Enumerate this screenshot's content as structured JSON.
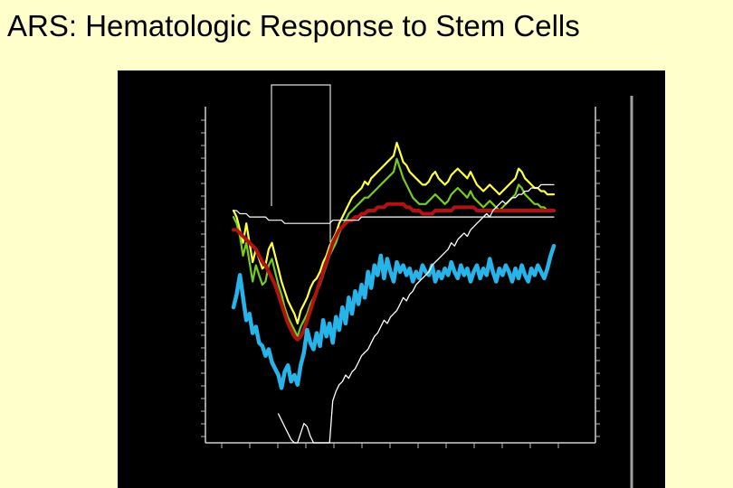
{
  "slide": {
    "title": "ARS: Hematologic Response to Stem Cells"
  },
  "chart_data": {
    "type": "line",
    "title": "ARS: Hematologic Response to Stem Cells",
    "grid": false,
    "x": [
      0,
      1,
      2,
      3,
      4,
      5,
      6,
      7,
      8,
      9,
      10,
      11,
      12,
      13,
      14,
      15,
      16,
      17,
      18,
      19,
      20,
      21,
      22,
      23,
      24,
      25,
      26,
      27,
      28,
      29,
      30,
      31,
      32,
      33,
      34,
      35,
      36,
      37,
      38,
      39,
      40,
      41,
      42,
      43,
      44,
      45,
      46,
      47,
      48,
      49,
      50,
      51,
      52,
      53,
      54,
      55,
      56,
      57,
      58,
      59,
      60,
      61,
      62,
      63,
      64,
      65,
      66,
      67,
      68,
      69,
      70,
      71,
      72,
      73,
      74,
      75,
      76,
      77,
      78,
      79,
      80,
      81,
      82,
      83,
      84,
      85,
      86,
      87,
      88,
      89,
      90,
      91,
      92,
      93,
      94,
      95,
      96,
      97,
      98,
      99,
      100
    ],
    "series_scale": "fraction of plot height (0 = bottom, 1 = top), values read from image",
    "colors": {
      "background": "#ffffcc",
      "panel": "#000000",
      "axis": "#d0d0d0",
      "yellow_series": "#ffff44",
      "green_series": "#77cc22",
      "red_series": "#b31212",
      "blue_series": "#27b4ea",
      "white_series": "#ffffff"
    },
    "series": [
      {
        "key": "yellow",
        "color": "#ffff44",
        "width": 2.2,
        "values": [
          0.72,
          0.7,
          0.66,
          0.62,
          0.68,
          0.62,
          0.56,
          0.6,
          0.57,
          0.54,
          0.55,
          0.6,
          0.62,
          0.58,
          0.54,
          0.5,
          0.47,
          0.44,
          0.42,
          0.4,
          0.37,
          0.41,
          0.43,
          0.45,
          0.48,
          0.5,
          0.51,
          0.53,
          0.56,
          0.58,
          0.61,
          0.63,
          0.65,
          0.68,
          0.7,
          0.72,
          0.74,
          0.76,
          0.77,
          0.78,
          0.79,
          0.81,
          0.8,
          0.82,
          0.83,
          0.84,
          0.85,
          0.86,
          0.87,
          0.88,
          0.89,
          0.93,
          0.9,
          0.87,
          0.86,
          0.84,
          0.83,
          0.82,
          0.81,
          0.8,
          0.8,
          0.81,
          0.83,
          0.84,
          0.82,
          0.81,
          0.8,
          0.81,
          0.83,
          0.84,
          0.85,
          0.84,
          0.83,
          0.82,
          0.84,
          0.82,
          0.8,
          0.79,
          0.78,
          0.79,
          0.8,
          0.79,
          0.78,
          0.77,
          0.78,
          0.79,
          0.8,
          0.81,
          0.82,
          0.85,
          0.84,
          0.82,
          0.81,
          0.8,
          0.79,
          0.79,
          0.78,
          0.78,
          0.77,
          0.77,
          0.77
        ]
      },
      {
        "key": "green",
        "color": "#77cc22",
        "width": 2.2,
        "values": [
          0.7,
          0.68,
          0.64,
          0.58,
          0.62,
          0.56,
          0.5,
          0.55,
          0.52,
          0.49,
          0.5,
          0.55,
          0.57,
          0.53,
          0.49,
          0.46,
          0.42,
          0.39,
          0.37,
          0.35,
          0.33,
          0.36,
          0.38,
          0.4,
          0.43,
          0.45,
          0.47,
          0.49,
          0.52,
          0.55,
          0.58,
          0.6,
          0.62,
          0.65,
          0.67,
          0.69,
          0.71,
          0.72,
          0.73,
          0.74,
          0.75,
          0.76,
          0.76,
          0.77,
          0.78,
          0.79,
          0.8,
          0.81,
          0.82,
          0.83,
          0.84,
          0.88,
          0.85,
          0.82,
          0.8,
          0.78,
          0.76,
          0.75,
          0.74,
          0.74,
          0.74,
          0.75,
          0.76,
          0.77,
          0.76,
          0.75,
          0.74,
          0.75,
          0.77,
          0.78,
          0.79,
          0.78,
          0.77,
          0.76,
          0.78,
          0.76,
          0.75,
          0.74,
          0.73,
          0.74,
          0.75,
          0.74,
          0.73,
          0.72,
          0.73,
          0.74,
          0.75,
          0.76,
          0.77,
          0.8,
          0.79,
          0.77,
          0.76,
          0.75,
          0.74,
          0.74,
          0.73,
          0.73,
          0.72,
          0.72,
          0.72
        ]
      },
      {
        "key": "red",
        "color": "#b31212",
        "width": 4,
        "values": [
          0.66,
          0.66,
          0.65,
          0.64,
          0.63,
          0.62,
          0.61,
          0.6,
          0.58,
          0.56,
          0.55,
          0.53,
          0.51,
          0.49,
          0.46,
          0.43,
          0.4,
          0.37,
          0.35,
          0.33,
          0.32,
          0.33,
          0.35,
          0.38,
          0.41,
          0.44,
          0.47,
          0.5,
          0.53,
          0.56,
          0.59,
          0.62,
          0.64,
          0.66,
          0.67,
          0.68,
          0.69,
          0.69,
          0.7,
          0.7,
          0.71,
          0.71,
          0.72,
          0.72,
          0.72,
          0.73,
          0.73,
          0.73,
          0.74,
          0.74,
          0.74,
          0.74,
          0.74,
          0.74,
          0.73,
          0.73,
          0.72,
          0.72,
          0.72,
          0.71,
          0.71,
          0.71,
          0.71,
          0.72,
          0.72,
          0.72,
          0.72,
          0.72,
          0.72,
          0.73,
          0.73,
          0.73,
          0.73,
          0.73,
          0.73,
          0.73,
          0.72,
          0.72,
          0.72,
          0.72,
          0.72,
          0.72,
          0.72,
          0.72,
          0.72,
          0.72,
          0.72,
          0.72,
          0.72,
          0.72,
          0.72,
          0.72,
          0.72,
          0.72,
          0.72,
          0.72,
          0.72,
          0.72,
          0.72,
          0.72,
          0.72
        ]
      },
      {
        "key": "white_top",
        "color": "#ffffff",
        "width": 1.2,
        "values": [
          0.72,
          0.72,
          0.71,
          0.71,
          0.71,
          0.7,
          0.7,
          0.7,
          0.7,
          0.7,
          0.7,
          0.69,
          0.69,
          0.69,
          0.69,
          0.69,
          0.68,
          0.68,
          0.68,
          0.68,
          0.68,
          0.68,
          0.68,
          0.68,
          0.68,
          0.68,
          0.68,
          0.68,
          0.68,
          0.68,
          0.68,
          0.69,
          0.69,
          0.69,
          0.69,
          0.69,
          0.69,
          0.69,
          0.69,
          0.69,
          0.7,
          0.7,
          0.7,
          0.7,
          0.7,
          0.7,
          0.7,
          0.7,
          0.7,
          0.7,
          0.7,
          0.7,
          0.7,
          0.7,
          0.7,
          0.7,
          0.7,
          0.7,
          0.7,
          0.7,
          0.7,
          0.7,
          0.7,
          0.7,
          0.7,
          0.7,
          0.7,
          0.7,
          0.7,
          0.7,
          0.7,
          0.7,
          0.7,
          0.7,
          0.7,
          0.7,
          0.7,
          0.7,
          0.7,
          0.7,
          0.7,
          0.7,
          0.7,
          0.7,
          0.7,
          0.7,
          0.7,
          0.7,
          0.7,
          0.7,
          0.7,
          0.7,
          0.7,
          0.7,
          0.7,
          0.7,
          0.7,
          0.7,
          0.7,
          0.7,
          0.7
        ]
      },
      {
        "key": "blue",
        "color": "#27b4ea",
        "width": 4.5,
        "values": [
          0.42,
          0.46,
          0.52,
          0.45,
          0.38,
          0.4,
          0.34,
          0.36,
          0.31,
          0.3,
          0.27,
          0.29,
          0.25,
          0.23,
          0.21,
          0.17,
          0.22,
          0.24,
          0.19,
          0.21,
          0.18,
          0.24,
          0.28,
          0.35,
          0.31,
          0.29,
          0.34,
          0.3,
          0.38,
          0.33,
          0.37,
          0.31,
          0.39,
          0.35,
          0.42,
          0.37,
          0.45,
          0.4,
          0.47,
          0.43,
          0.49,
          0.45,
          0.53,
          0.48,
          0.55,
          0.52,
          0.58,
          0.51,
          0.57,
          0.53,
          0.5,
          0.56,
          0.53,
          0.55,
          0.52,
          0.54,
          0.5,
          0.53,
          0.51,
          0.55,
          0.53,
          0.52,
          0.55,
          0.5,
          0.53,
          0.51,
          0.54,
          0.52,
          0.56,
          0.53,
          0.51,
          0.55,
          0.52,
          0.54,
          0.5,
          0.53,
          0.55,
          0.51,
          0.54,
          0.52,
          0.57,
          0.53,
          0.5,
          0.54,
          0.52,
          0.55,
          0.53,
          0.5,
          0.54,
          0.51,
          0.55,
          0.52,
          0.5,
          0.54,
          0.52,
          0.55,
          0.53,
          0.51,
          0.54,
          0.58,
          0.61
        ]
      },
      {
        "key": "white_bottom",
        "color": "#ffffff",
        "width": 1.3,
        "values": [
          null,
          null,
          null,
          null,
          null,
          null,
          null,
          null,
          null,
          null,
          null,
          null,
          null,
          null,
          0.09,
          0.07,
          0.05,
          0.03,
          0.01,
          0.0,
          0.0,
          0.03,
          0.06,
          0.05,
          0.02,
          0.0,
          0.0,
          0.0,
          0.0,
          0.0,
          0.0,
          0.13,
          0.16,
          0.18,
          0.19,
          0.21,
          0.2,
          0.22,
          0.23,
          0.25,
          0.27,
          0.28,
          0.29,
          0.31,
          0.33,
          0.34,
          0.36,
          0.38,
          0.37,
          0.39,
          0.4,
          0.41,
          0.43,
          0.45,
          0.44,
          0.46,
          0.47,
          0.49,
          0.5,
          0.51,
          0.52,
          0.53,
          0.55,
          0.56,
          0.57,
          0.58,
          0.59,
          0.6,
          0.62,
          0.61,
          0.63,
          0.64,
          0.65,
          0.64,
          0.66,
          0.67,
          0.68,
          0.69,
          0.7,
          0.71,
          0.7,
          0.72,
          0.73,
          0.74,
          0.75,
          0.74,
          0.75,
          0.76,
          0.76,
          0.77,
          0.77,
          0.78,
          0.78,
          0.79,
          0.79,
          0.79,
          0.8,
          0.8,
          0.8,
          0.8,
          0.8
        ]
      }
    ]
  }
}
